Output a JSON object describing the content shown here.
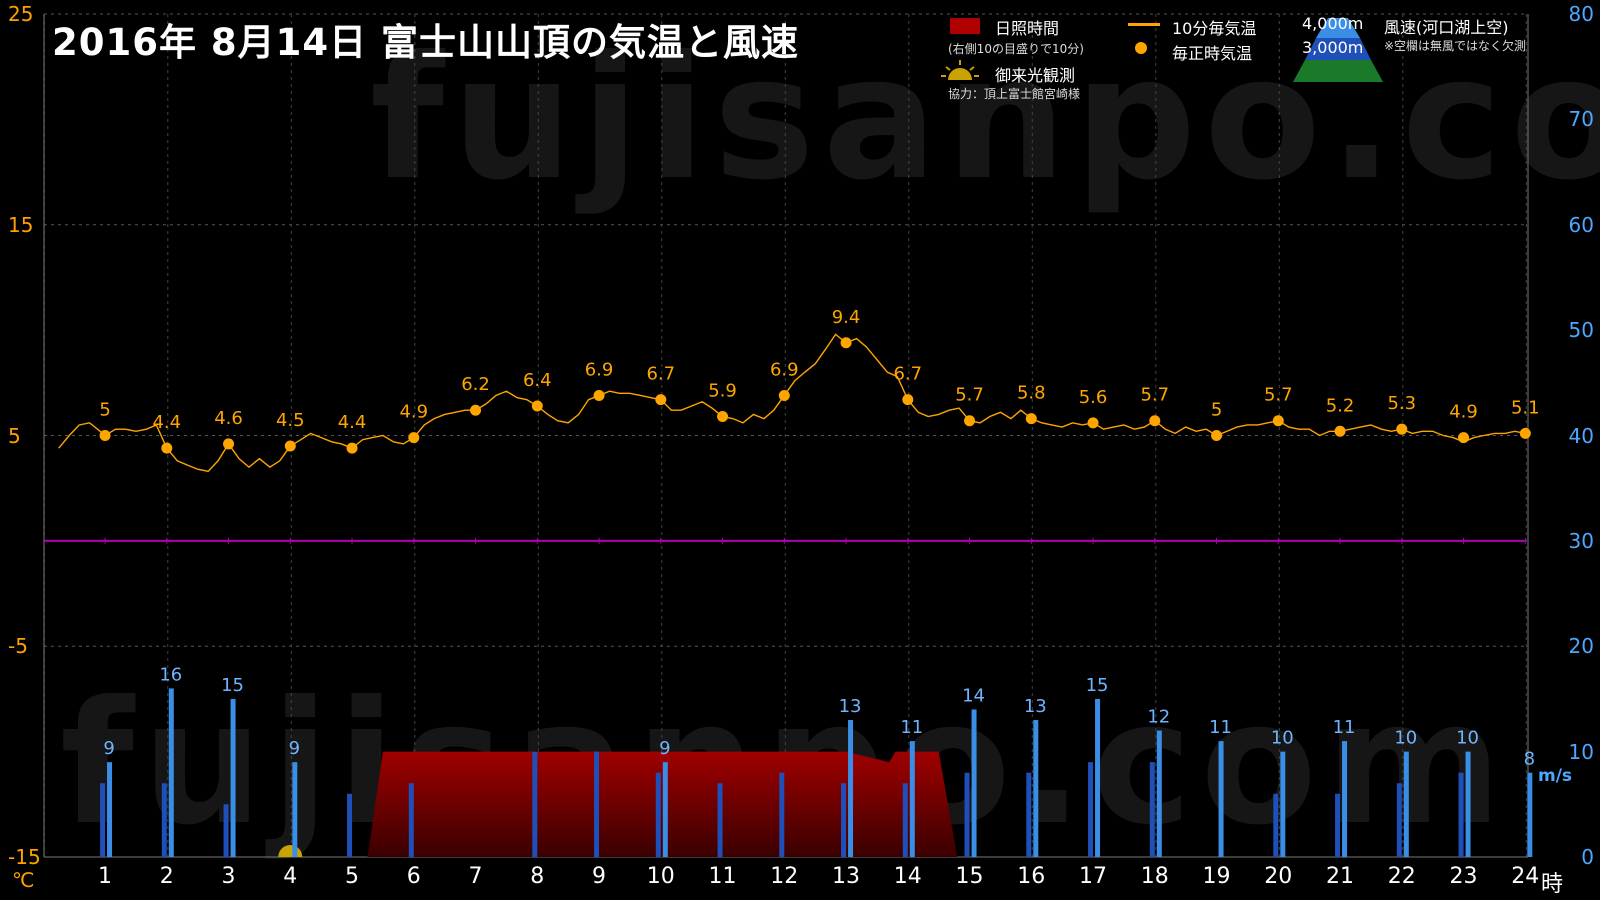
{
  "header": {
    "title": "2016年  8月14日   富士山山頂の気温と風速"
  },
  "watermark": "fujisanpo.com",
  "legend": {
    "sunshine_label": "日照時間",
    "sunshine_note": "(右側10の目盛りで10分)",
    "temp10_label": "10分毎気温",
    "hourly_label": "毎正時気温",
    "sunrise_label": "御来光観測",
    "credit": "協力：頂上富士館宮崎様",
    "wind_4000": "4,000m",
    "wind_3000": "3,000m",
    "wind_label": "風速(河口湖上空)",
    "wind_note": "※空欄は無風ではなく欠測"
  },
  "colors": {
    "temperature": "#ffa500",
    "wind_4000": "#3a8ee6",
    "wind_3000": "#1f4fb8",
    "sunshine": "#a00000",
    "zero_line": "#b000b0",
    "axis_left": "#ffa000",
    "axis_right": "#4da6ff"
  },
  "axes": {
    "left_unit": "℃",
    "right_unit": "m/s",
    "x_unit": "時",
    "left_ticks": [
      "25",
      "15",
      "5",
      "-5",
      "-15"
    ],
    "right_ticks": [
      "80",
      "70",
      "60",
      "50",
      "40",
      "30",
      "20",
      "10",
      "0"
    ],
    "x_ticks": [
      "1",
      "2",
      "3",
      "4",
      "5",
      "6",
      "7",
      "8",
      "9",
      "10",
      "11",
      "12",
      "13",
      "14",
      "15",
      "16",
      "17",
      "18",
      "19",
      "20",
      "21",
      "22",
      "23",
      "24"
    ]
  },
  "chart_data": {
    "type": "line",
    "x_label": "時",
    "temp_ylim": [
      -15,
      25
    ],
    "wind_ylim": [
      0,
      80
    ],
    "x_range": [
      0.25,
      24
    ],
    "grid": true,
    "hourly_temperature": {
      "x": [
        1,
        2,
        3,
        4,
        5,
        6,
        7,
        8,
        9,
        10,
        11,
        12,
        13,
        14,
        15,
        16,
        17,
        18,
        19,
        20,
        21,
        22,
        23,
        24
      ],
      "values": [
        5,
        4.4,
        4.6,
        4.5,
        4.4,
        4.9,
        6.2,
        6.4,
        6.9,
        6.7,
        5.9,
        6.9,
        9.4,
        6.7,
        5.7,
        5.8,
        5.6,
        5.7,
        5,
        5.7,
        5.2,
        5.3,
        4.9,
        5.1
      ],
      "labels": [
        "5",
        "4.4",
        "4.6",
        "4.5",
        "4.4",
        "4.9",
        "6.2",
        "6.4",
        "6.9",
        "6.7",
        "5.9",
        "6.9",
        "9.4",
        "6.7",
        "5.7",
        "5.8",
        "5.6",
        "5.7",
        "5",
        "5.7",
        "5.2",
        "5.3",
        "4.9",
        "5.1"
      ]
    },
    "temperature_10min": {
      "x": [
        0.25,
        0.42,
        0.58,
        0.75,
        0.92,
        1.0,
        1.17,
        1.33,
        1.5,
        1.67,
        1.83,
        2.0,
        2.17,
        2.33,
        2.5,
        2.67,
        2.83,
        3.0,
        3.17,
        3.33,
        3.5,
        3.67,
        3.83,
        4.0,
        4.17,
        4.33,
        4.5,
        4.67,
        4.83,
        5.0,
        5.17,
        5.33,
        5.5,
        5.67,
        5.83,
        6.0,
        6.17,
        6.33,
        6.5,
        6.67,
        6.83,
        7.0,
        7.17,
        7.33,
        7.5,
        7.67,
        7.83,
        8.0,
        8.17,
        8.33,
        8.5,
        8.67,
        8.83,
        9.0,
        9.17,
        9.33,
        9.5,
        9.67,
        9.83,
        10.0,
        10.17,
        10.33,
        10.5,
        10.67,
        10.83,
        11.0,
        11.17,
        11.33,
        11.5,
        11.67,
        11.83,
        12.0,
        12.17,
        12.33,
        12.5,
        12.67,
        12.83,
        13.0,
        13.17,
        13.33,
        13.5,
        13.67,
        13.83,
        14.0,
        14.17,
        14.33,
        14.5,
        14.67,
        14.83,
        15.0,
        15.17,
        15.33,
        15.5,
        15.67,
        15.83,
        16.0,
        16.17,
        16.33,
        16.5,
        16.67,
        16.83,
        17.0,
        17.17,
        17.33,
        17.5,
        17.67,
        17.83,
        18.0,
        18.17,
        18.33,
        18.5,
        18.67,
        18.83,
        19.0,
        19.17,
        19.33,
        19.5,
        19.67,
        19.83,
        20.0,
        20.17,
        20.33,
        20.5,
        20.67,
        20.83,
        21.0,
        21.17,
        21.33,
        21.5,
        21.67,
        21.83,
        22.0,
        22.17,
        22.33,
        22.5,
        22.67,
        22.83,
        23.0,
        23.17,
        23.33,
        23.5,
        23.67,
        23.83,
        24.0
      ],
      "values": [
        4.4,
        5.0,
        5.5,
        5.6,
        5.2,
        5.0,
        5.3,
        5.3,
        5.2,
        5.3,
        5.5,
        4.4,
        3.8,
        3.6,
        3.4,
        3.3,
        3.8,
        4.6,
        3.9,
        3.5,
        3.9,
        3.5,
        3.8,
        4.5,
        4.8,
        5.1,
        4.9,
        4.7,
        4.6,
        4.4,
        4.8,
        4.9,
        5.0,
        4.7,
        4.6,
        4.9,
        5.5,
        5.8,
        6.0,
        6.1,
        6.2,
        6.2,
        6.5,
        6.9,
        7.1,
        6.8,
        6.7,
        6.4,
        6.0,
        5.7,
        5.6,
        6.0,
        6.7,
        6.9,
        7.1,
        7.0,
        7.0,
        6.9,
        6.8,
        6.7,
        6.2,
        6.2,
        6.4,
        6.6,
        6.3,
        5.9,
        5.8,
        5.6,
        6.0,
        5.8,
        6.2,
        6.9,
        7.6,
        8.0,
        8.4,
        9.1,
        9.8,
        9.4,
        9.6,
        9.2,
        8.6,
        8.0,
        7.8,
        6.7,
        6.1,
        5.9,
        6.0,
        6.2,
        6.3,
        5.7,
        5.6,
        5.9,
        6.1,
        5.8,
        6.2,
        5.8,
        5.6,
        5.5,
        5.4,
        5.6,
        5.5,
        5.6,
        5.3,
        5.4,
        5.5,
        5.3,
        5.4,
        5.7,
        5.3,
        5.1,
        5.4,
        5.2,
        5.3,
        5.0,
        5.2,
        5.4,
        5.5,
        5.5,
        5.6,
        5.7,
        5.4,
        5.3,
        5.3,
        5.0,
        5.2,
        5.2,
        5.3,
        5.4,
        5.5,
        5.3,
        5.2,
        5.3,
        5.1,
        5.2,
        5.2,
        5.0,
        4.9,
        4.7,
        4.9,
        5.0,
        5.1,
        5.1,
        5.2,
        5.1
      ]
    },
    "wind_4000m": {
      "x": [
        1,
        2,
        3,
        4,
        13,
        14,
        15,
        16,
        17,
        18,
        19,
        20,
        21,
        22,
        23,
        24
      ],
      "values": [
        9,
        16,
        15,
        9,
        13,
        11,
        14,
        13,
        15,
        12,
        11,
        10,
        11,
        10,
        10,
        8
      ],
      "labels": [
        "9",
        "16",
        "15",
        "9",
        "13",
        "11",
        "14",
        "13",
        "15",
        "12",
        "11",
        "10",
        "11",
        "10",
        "10",
        "8"
      ]
    },
    "wind_4000m_unlabeled": {
      "x": [
        10
      ],
      "values": [
        9
      ],
      "labels": [
        "9"
      ]
    },
    "wind_3000m": {
      "x": [
        1,
        2,
        3,
        5,
        6,
        8,
        9,
        10,
        11,
        12,
        13,
        14,
        15,
        16,
        17,
        18,
        20,
        21,
        22,
        23
      ],
      "values": [
        7,
        7,
        5,
        6,
        7,
        10,
        10,
        8,
        7,
        8,
        7,
        7,
        8,
        8,
        9,
        9,
        6,
        6,
        7,
        8
      ]
    },
    "sunshine_minutes": {
      "x": [
        5.25,
        5.5,
        6,
        7,
        8,
        9,
        10,
        11,
        12,
        13,
        13.7,
        13.8,
        14,
        14.5,
        14.8
      ],
      "values": [
        0,
        10,
        10,
        10,
        10,
        10,
        10,
        10,
        10,
        10,
        9,
        10,
        10,
        10,
        0
      ]
    },
    "sunrise_marker_x": 4.0
  }
}
